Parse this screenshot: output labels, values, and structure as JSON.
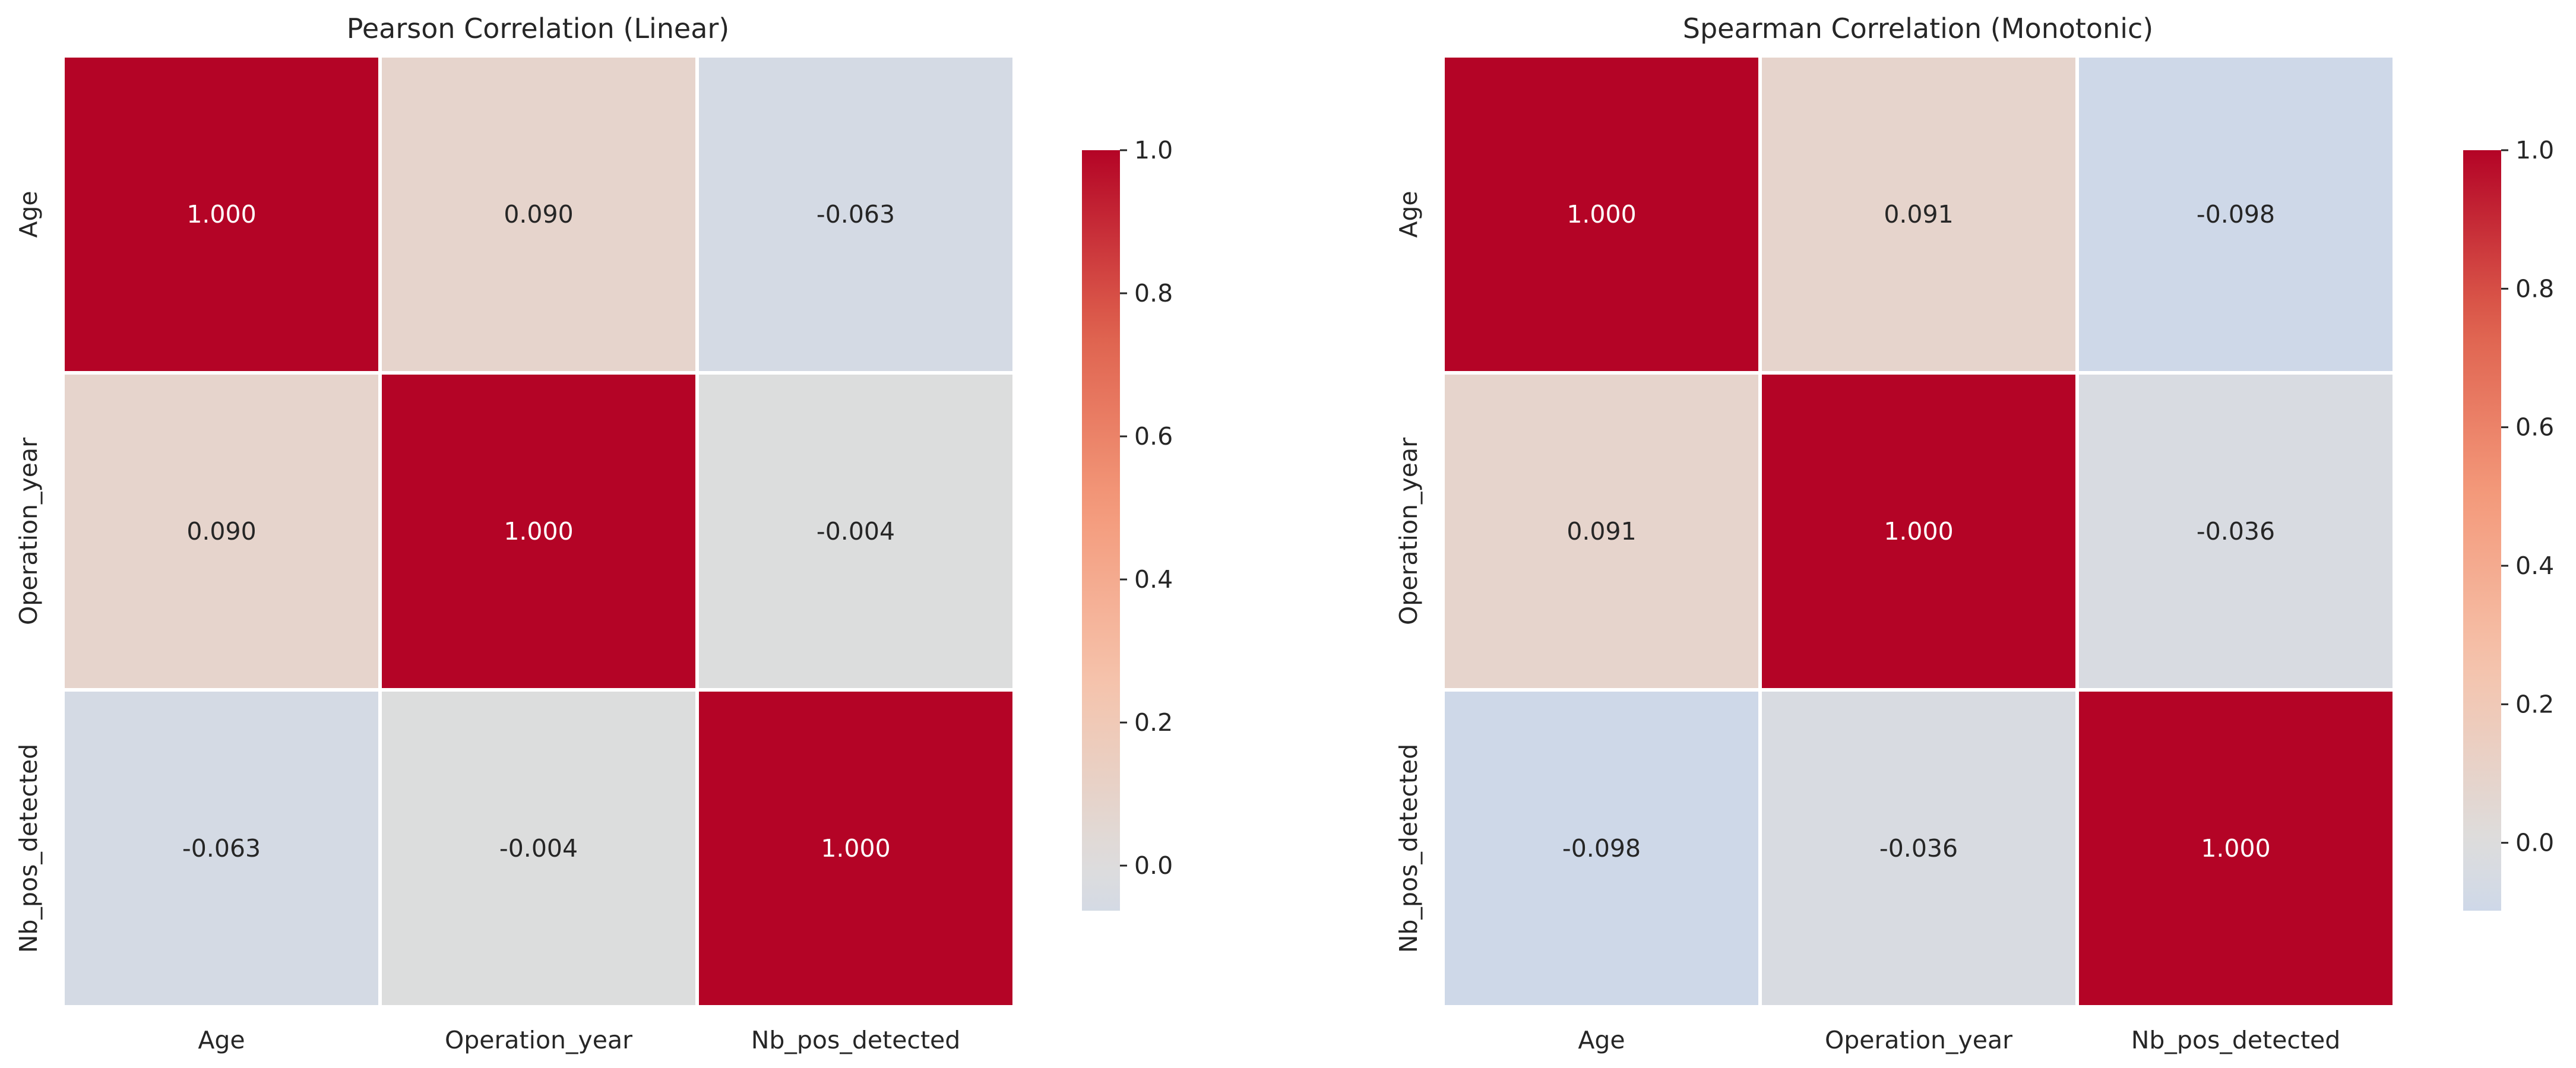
{
  "chart_data": [
    {
      "type": "heatmap",
      "title": "Pearson Correlation (Linear)",
      "xlabel": "",
      "ylabel": "",
      "x_categories": [
        "Age",
        "Operation_year",
        "Nb_pos_detected"
      ],
      "y_categories": [
        "Age",
        "Operation_year",
        "Nb_pos_detected"
      ],
      "values": [
        [
          1.0,
          0.09,
          -0.063
        ],
        [
          0.09,
          1.0,
          -0.004
        ],
        [
          -0.063,
          -0.004,
          1.0
        ]
      ],
      "value_labels": [
        [
          "1.000",
          "0.090",
          "-0.063"
        ],
        [
          "0.090",
          "1.000",
          "-0.004"
        ],
        [
          "-0.063",
          "-0.004",
          "1.000"
        ]
      ],
      "colormap": "coolwarm",
      "center": 0,
      "colorbar": {
        "range": [
          -0.063,
          1.0
        ],
        "ticks": [
          0.0,
          0.2,
          0.4,
          0.6,
          0.8,
          1.0
        ],
        "tick_labels": [
          "0.0",
          "0.2",
          "0.4",
          "0.6",
          "0.8",
          "1.0"
        ]
      },
      "grid": false
    },
    {
      "type": "heatmap",
      "title": "Spearman Correlation (Monotonic)",
      "xlabel": "",
      "ylabel": "",
      "x_categories": [
        "Age",
        "Operation_year",
        "Nb_pos_detected"
      ],
      "y_categories": [
        "Age",
        "Operation_year",
        "Nb_pos_detected"
      ],
      "values": [
        [
          1.0,
          0.091,
          -0.098
        ],
        [
          0.091,
          1.0,
          -0.036
        ],
        [
          -0.098,
          -0.036,
          1.0
        ]
      ],
      "value_labels": [
        [
          "1.000",
          "0.091",
          "-0.098"
        ],
        [
          "0.091",
          "1.000",
          "-0.036"
        ],
        [
          "-0.098",
          "-0.036",
          "1.000"
        ]
      ],
      "colormap": "coolwarm",
      "center": 0,
      "colorbar": {
        "range": [
          -0.098,
          1.0
        ],
        "ticks": [
          0.0,
          0.2,
          0.4,
          0.6,
          0.8,
          1.0
        ],
        "tick_labels": [
          "0.0",
          "0.2",
          "0.4",
          "0.6",
          "0.8",
          "1.0"
        ]
      },
      "grid": false
    }
  ]
}
